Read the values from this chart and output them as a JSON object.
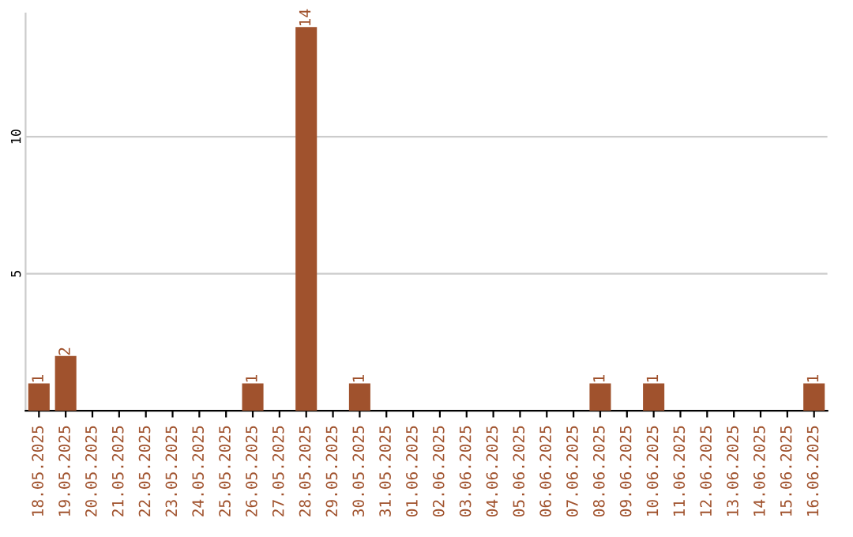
{
  "chart_data": {
    "type": "bar",
    "categories": [
      "18.05.2025",
      "19.05.2025",
      "20.05.2025",
      "21.05.2025",
      "22.05.2025",
      "23.05.2025",
      "24.05.2025",
      "25.05.2025",
      "26.05.2025",
      "27.05.2025",
      "28.05.2025",
      "29.05.2025",
      "30.05.2025",
      "31.05.2025",
      "01.06.2025",
      "02.06.2025",
      "03.06.2025",
      "04.06.2025",
      "05.06.2025",
      "06.06.2025",
      "07.06.2025",
      "08.06.2025",
      "09.06.2025",
      "10.06.2025",
      "11.06.2025",
      "12.06.2025",
      "13.06.2025",
      "14.06.2025",
      "15.06.2025",
      "16.06.2025"
    ],
    "values": [
      1,
      2,
      0,
      0,
      0,
      0,
      0,
      0,
      1,
      0,
      14,
      0,
      1,
      0,
      0,
      0,
      0,
      0,
      0,
      0,
      0,
      1,
      0,
      1,
      0,
      0,
      0,
      0,
      0,
      1
    ],
    "value_labels": [
      "1",
      "2",
      null,
      null,
      null,
      null,
      null,
      null,
      "1",
      null,
      "14",
      null,
      "1",
      null,
      null,
      null,
      null,
      null,
      null,
      null,
      null,
      "1",
      null,
      "1",
      null,
      null,
      null,
      null,
      null,
      "1"
    ],
    "color": "#a0522d",
    "ylim": [
      0,
      14.5
    ],
    "yticks": [
      5,
      10
    ],
    "grid": "y"
  }
}
